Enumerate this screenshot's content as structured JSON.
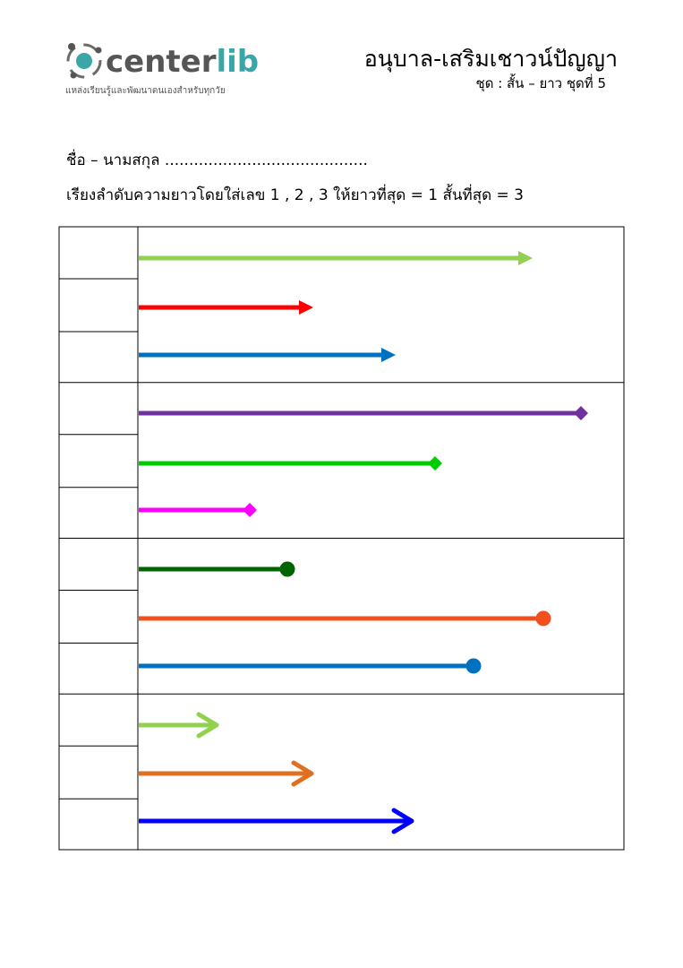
{
  "brand": {
    "name_part1": "center",
    "name_part2": "lib",
    "tagline": "แหล่งเรียนรู้และพัฒนาตนเองสำหรับทุกวัย"
  },
  "header": {
    "title": "อนุบาล-เสริมเชาวน์ปัญญา",
    "subtitle": "ชุด : สั้น – ยาว ชุดที่ 5"
  },
  "worksheet": {
    "name_line": "ชื่อ – นามสกุล ..........................................",
    "instruction": "เรียงลำดับความยาวโดยใส่เลข 1 , 2 , 3  ให้ยาวที่สุด = 1   สั้นที่สุด = 3"
  }
}
